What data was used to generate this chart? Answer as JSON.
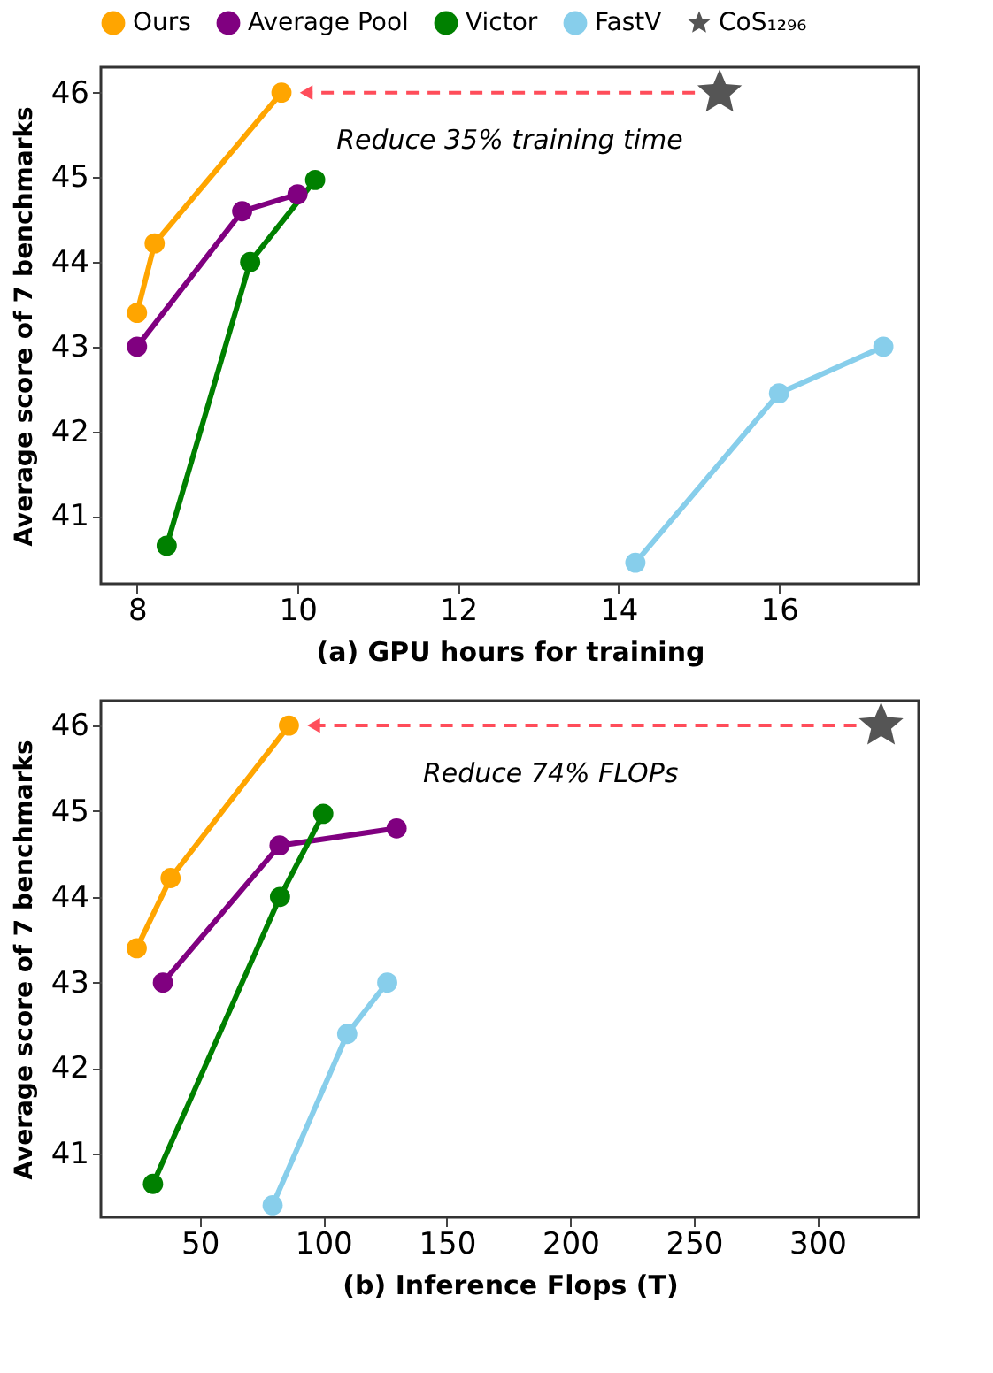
{
  "chart_data": [
    {
      "type": "line",
      "xlabel": "(a) GPU hours for training",
      "ylabel": "Average score of 7 benchmarks",
      "xlim": [
        7.55,
        17.74
      ],
      "ylim": [
        40.2,
        46.3
      ],
      "xticks": [
        8,
        10,
        12,
        14,
        16
      ],
      "yticks": [
        41,
        42,
        43,
        44,
        45,
        46
      ],
      "grid": false,
      "legend": "top",
      "marker": "circle",
      "line_style": "solid",
      "annotations": [
        "Reduce 35% training time"
      ],
      "series": [
        {
          "name": "Ours",
          "color": "#ffa500",
          "x": [
            8.0,
            8.22,
            9.8
          ],
          "values": [
            43.4,
            44.22,
            46.0
          ]
        },
        {
          "name": "Average Pool",
          "color": "#800080",
          "x": [
            8.0,
            9.31,
            10.0
          ],
          "values": [
            43.0,
            44.6,
            44.8
          ]
        },
        {
          "name": "Victor",
          "color": "#008000",
          "x": [
            8.37,
            9.41,
            10.22
          ],
          "values": [
            40.65,
            44.0,
            44.97
          ]
        },
        {
          "name": "FastV",
          "color": "#87ceeb",
          "x": [
            14.21,
            16.0,
            17.3
          ],
          "values": [
            40.45,
            42.45,
            43.0
          ]
        },
        {
          "name": "CoS₁₂₉₆",
          "type": "scatter",
          "marker": "star",
          "color": "#555555",
          "x": [
            15.26
          ],
          "values": [
            46.0
          ]
        }
      ]
    },
    {
      "type": "line",
      "xlabel": "(b) Inference Flops (T)",
      "ylabel": "Average score of 7 benchmarks",
      "xlim": [
        10,
        341
      ],
      "ylim": [
        40.26,
        46.29
      ],
      "xticks": [
        50,
        100,
        150,
        200,
        250,
        300
      ],
      "yticks": [
        41,
        42,
        43,
        44,
        45,
        46
      ],
      "grid": false,
      "legend": false,
      "marker": "circle",
      "line_style": "solid",
      "annotations": [
        "Reduce 74% FLOPs"
      ],
      "series": [
        {
          "color": "#ffa500",
          "x": [
            24.5,
            38.2,
            86.1
          ],
          "values": [
            43.4,
            44.22,
            46.0
          ]
        },
        {
          "color": "#800080",
          "x": [
            35.1,
            82.3,
            129.7
          ],
          "values": [
            43.0,
            44.6,
            44.8
          ]
        },
        {
          "color": "#008000",
          "x": [
            31.1,
            82.5,
            100.0
          ],
          "values": [
            40.65,
            44.0,
            44.97
          ]
        },
        {
          "color": "#87ceeb",
          "x": [
            79.5,
            109.7,
            125.9
          ],
          "values": [
            40.4,
            42.4,
            43.0
          ]
        },
        {
          "type": "scatter",
          "marker": "star",
          "color": "#555555",
          "x": [
            325.8
          ],
          "values": [
            46.0
          ]
        }
      ]
    }
  ]
}
